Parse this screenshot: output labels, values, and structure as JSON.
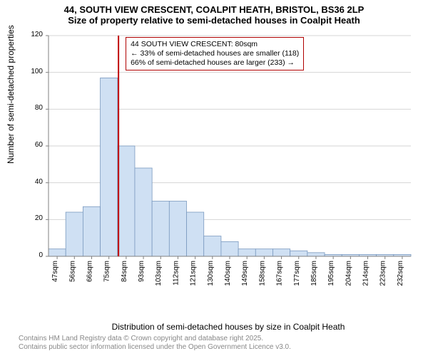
{
  "title_main": "44, SOUTH VIEW CRESCENT, COALPIT HEATH, BRISTOL, BS36 2LP",
  "title_sub": "Size of property relative to semi-detached houses in Coalpit Heath",
  "chart": {
    "type": "histogram",
    "ylabel": "Number of semi-detached properties",
    "xlabel": "Distribution of semi-detached houses by size in Coalpit Heath",
    "ylim": [
      0,
      120
    ],
    "yticks": [
      0,
      20,
      40,
      60,
      80,
      100,
      120
    ],
    "xtick_labels": [
      "47sqm",
      "56sqm",
      "66sqm",
      "75sqm",
      "84sqm",
      "93sqm",
      "103sqm",
      "112sqm",
      "121sqm",
      "130sqm",
      "140sqm",
      "149sqm",
      "158sqm",
      "167sqm",
      "177sqm",
      "185sqm",
      "195sqm",
      "204sqm",
      "214sqm",
      "223sqm",
      "232sqm"
    ],
    "values": [
      4,
      24,
      27,
      97,
      60,
      48,
      30,
      30,
      24,
      11,
      8,
      4,
      4,
      4,
      3,
      2,
      1,
      1,
      1,
      1,
      1
    ],
    "bar_fill": "#cfe0f3",
    "bar_stroke": "#7a99bf",
    "grid_color": "#d6d6d6",
    "axis_color": "#808080",
    "text_color": "#000000",
    "tick_fontsize": 10,
    "label_fontsize": 12,
    "title_fontsize": 13,
    "background_color": "#ffffff",
    "refline": {
      "x_position_sqm": 80,
      "color": "#c00000",
      "width": 2
    },
    "infobox": {
      "border_color": "#b00000",
      "lines": [
        "44 SOUTH VIEW CRESCENT: 80sqm",
        "← 33% of semi-detached houses are smaller (118)",
        "66% of semi-detached houses are larger (233) →"
      ],
      "fontsize": 10.5
    }
  },
  "footer_line1": "Contains HM Land Registry data © Crown copyright and database right 2025.",
  "footer_line2": "Contains public sector information licensed under the Open Government Licence v3.0."
}
